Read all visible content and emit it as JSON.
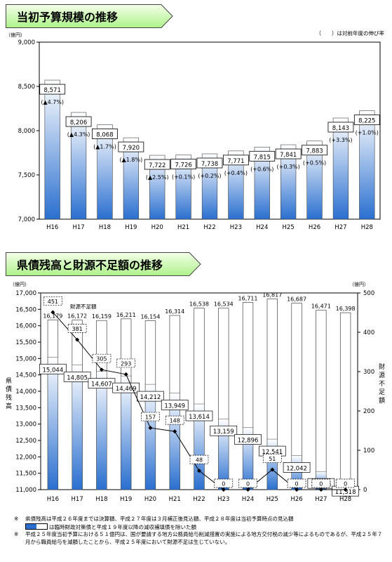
{
  "chart_data": [
    {
      "type": "bar",
      "title": "当初予算規模の推移",
      "unit": "（億円）",
      "legend_note": "（　　）は対前年度の伸び率",
      "categories": [
        "H16",
        "H17",
        "H18",
        "H19",
        "H20",
        "H21",
        "H22",
        "H23",
        "H24",
        "H25",
        "H26",
        "H27",
        "H28"
      ],
      "values": [
        8571,
        8206,
        8068,
        7920,
        7722,
        7726,
        7738,
        7771,
        7815,
        7841,
        7883,
        8143,
        8225
      ],
      "value_labels": [
        "8,571",
        "8,206",
        "8,068",
        "7,920",
        "7,722",
        "7,726",
        "7,738",
        "7,771",
        "7,815",
        "7,841",
        "7,883",
        "8,143",
        "8,225"
      ],
      "growth_labels": [
        "(▲4.7%)",
        "(▲4.3%)",
        "(▲1.7%)",
        "(▲1.8%)",
        "(▲2.5%)",
        "(+0.1%)",
        "(+0.2%)",
        "(+0.4%)",
        "(+0.6%)",
        "(+0.3%)",
        "(+0.5%)",
        "(+3.3%)",
        "(+1.0%)"
      ],
      "ylim": [
        7000,
        9000
      ],
      "yticks": [
        7000,
        7500,
        8000,
        8500,
        9000
      ],
      "ytick_labels": [
        "7,000",
        "7,500",
        "8,000",
        "8,500",
        "9,000"
      ],
      "colors": {
        "bar_top": "#ffffff",
        "bar_bottom": "#2a6fcf"
      }
    },
    {
      "type": "bar",
      "title": "県債残高と財源不足額の推移",
      "left_unit": "（億円）",
      "right_unit": "（億円）",
      "left_axis_label": "県債残高",
      "right_axis_label": "財源不足額",
      "line_legend": "財源不足額",
      "categories": [
        "H16",
        "H17",
        "H18",
        "H19",
        "H20",
        "H21",
        "H22",
        "H23",
        "H24",
        "H25",
        "H26",
        "H27",
        "H28"
      ],
      "series": [
        {
          "name": "県債残高",
          "values": [
            16179,
            16172,
            16159,
            16211,
            16154,
            16314,
            16538,
            16534,
            16711,
            16817,
            16687,
            16471,
            16398
          ],
          "labels": [
            "16,179",
            "16,172",
            "16,159",
            "16,211",
            "16,154",
            "16,314",
            "16,538",
            "16,534",
            "16,711",
            "16,817",
            "16,687",
            "16,471",
            "16,398"
          ]
        },
        {
          "name": "",
          "values": [
            15044,
            14805,
            14607,
            14469,
            14212,
            13949,
            13614,
            13159,
            12896,
            12541,
            12042,
            11554,
            11318
          ],
          "labels": [
            "15,044",
            "14,805",
            "14,607",
            "14,469",
            "14,212",
            "13,949",
            "13,614",
            "13,159",
            "12,896",
            "12,541",
            "12,042",
            "11,554",
            "11,318"
          ]
        },
        {
          "name": "財源不足額",
          "type": "line",
          "values": [
            451,
            381,
            305,
            293,
            157,
            148,
            48,
            0,
            0,
            51,
            0,
            0,
            0
          ],
          "labels": [
            "451",
            "381",
            "305",
            "293",
            "157",
            "148",
            "48",
            "0",
            "0",
            "51",
            "0",
            "0",
            "0"
          ]
        }
      ],
      "ylim": [
        11000,
        17000
      ],
      "yticks": [
        11000,
        11500,
        12000,
        12500,
        13000,
        13500,
        14000,
        14500,
        15000,
        15500,
        16000,
        16500,
        17000
      ],
      "ytick_labels": [
        "11,000",
        "11,500",
        "12,000",
        "12,500",
        "13,000",
        "13,500",
        "14,000",
        "14,500",
        "15,000",
        "15,500",
        "16,000",
        "16,500",
        "17,000"
      ],
      "y2lim": [
        0,
        500
      ],
      "y2ticks": [
        0,
        100,
        200,
        300,
        400,
        500
      ],
      "y2tick_labels": [
        "0",
        "100",
        "200",
        "300",
        "400",
        "500"
      ],
      "colors": {
        "bar_top": "#ffffff",
        "bar_bottom": "#2a6fcf",
        "line": "#000000"
      }
    }
  ],
  "notes": [
    {
      "mark": "※",
      "text": "県債残高は平成２６年度までは決算額、平成２７年度は３月補正後見込額、平成２８年度は当初予算時点の見込額"
    },
    {
      "mark": "",
      "text": "は臨時財政対策債と平成１９年度以降の減収補填債を除いた額"
    },
    {
      "mark": "※",
      "text": "平成２５年度当初予算における５１億円は、国が要請する地方公務員給与削減措置の実施による地方交付税の減少等によるものであるが、平成２５年７月から職員給与を減額したことから、平成２５年度において財源不足は生じていない。"
    }
  ]
}
